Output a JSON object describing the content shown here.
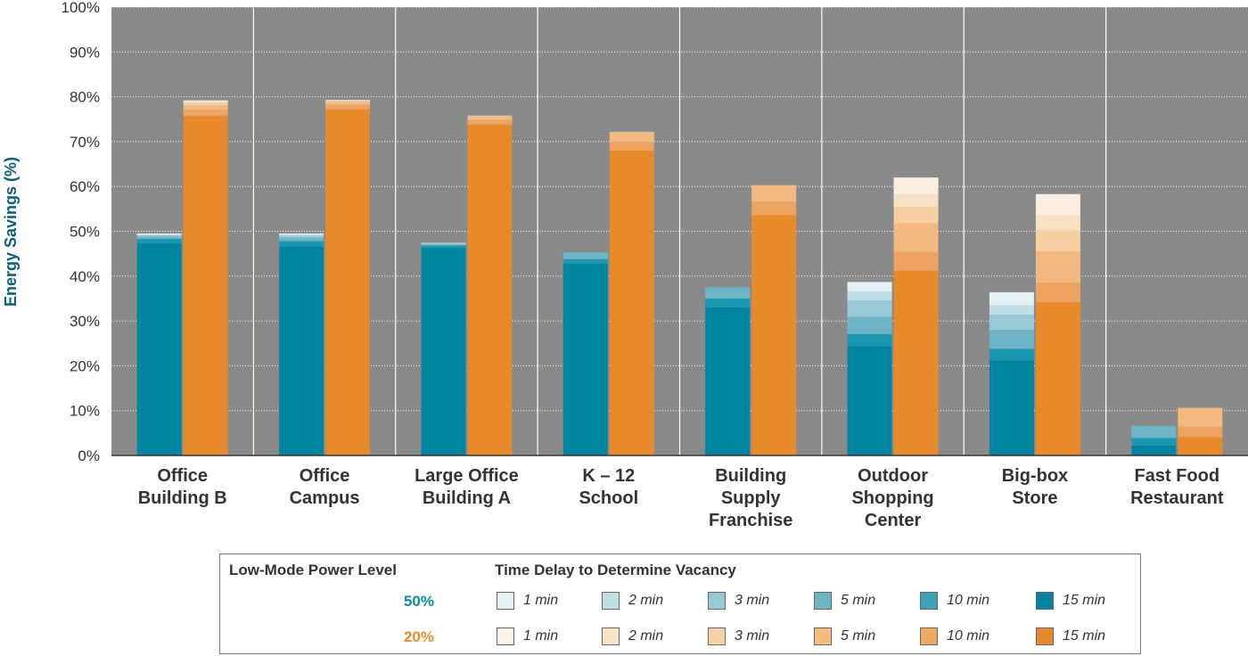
{
  "chart_data": {
    "type": "bar",
    "ylabel": "Energy Savings (%)",
    "ylim": [
      0,
      100
    ],
    "yticks": [
      "0%",
      "10%",
      "20%",
      "30%",
      "40%",
      "50%",
      "60%",
      "70%",
      "80%",
      "90%",
      "100%"
    ],
    "grid": true,
    "background_color": "#8a8a8a",
    "categories": [
      [
        "Office",
        "Building B"
      ],
      [
        "Office",
        "Campus"
      ],
      [
        "Large Office",
        "Building A"
      ],
      [
        "K – 12",
        "School"
      ],
      [
        "Building",
        "Supply",
        "Franchise"
      ],
      [
        "Outdoor",
        "Shopping",
        "Center"
      ],
      [
        "Big-box",
        "Store"
      ],
      [
        "Fast Food",
        "Restaurant"
      ]
    ],
    "stack_order": [
      "15 min",
      "10 min",
      "5 min",
      "3 min",
      "2 min",
      "1 min"
    ],
    "series": [
      {
        "name": "50%",
        "colors": [
          "#00849f",
          "#1c97b0",
          "#6fb4c7",
          "#98c9d6",
          "#c0dee6",
          "#e6f2f5"
        ],
        "values": [
          [
            47.3,
            48.3,
            48.8,
            49.1,
            49.3,
            49.5
          ],
          [
            46.6,
            47.8,
            48.6,
            49.0,
            49.3,
            49.5
          ],
          [
            46.3,
            46.8,
            47.1,
            47.2,
            47.3,
            47.4
          ],
          [
            42.8,
            43.8,
            45.3,
            45.3,
            45.3,
            45.3
          ],
          [
            33.0,
            35.0,
            37.5,
            37.5,
            37.5,
            37.5
          ],
          [
            24.4,
            27.1,
            30.9,
            34.6,
            36.6,
            38.7
          ],
          [
            21.2,
            23.8,
            28.0,
            31.4,
            33.5,
            36.4
          ],
          [
            2.2,
            3.9,
            6.6,
            6.6,
            6.6,
            6.6
          ]
        ]
      },
      {
        "name": "20%",
        "colors": [
          "#e88a2c",
          "#eea461",
          "#f2ba80",
          "#f6cfa3",
          "#f9e0c4",
          "#fcefe0"
        ],
        "values": [
          [
            75.7,
            77.1,
            78.1,
            78.6,
            79.0,
            79.2
          ],
          [
            77.2,
            78.2,
            78.8,
            79.1,
            79.2,
            79.3
          ],
          [
            73.8,
            74.8,
            75.6,
            75.8,
            75.8,
            75.8
          ],
          [
            68.0,
            70.0,
            72.2,
            72.2,
            72.2,
            72.2
          ],
          [
            53.6,
            56.6,
            60.3,
            60.3,
            60.3,
            60.3
          ],
          [
            41.2,
            45.4,
            51.8,
            55.4,
            58.1,
            62.0
          ],
          [
            34.2,
            38.5,
            45.5,
            50.2,
            53.5,
            58.3
          ],
          [
            4.1,
            6.4,
            10.6,
            10.6,
            10.6,
            10.6
          ]
        ]
      }
    ],
    "legend": {
      "placement": "bottom",
      "low_mode_title": "Low-Mode Power Level",
      "delay_title": "Time Delay to Determine Vacancy",
      "delays": [
        "1 min",
        "2 min",
        "3 min",
        "5 min",
        "10 min",
        "15 min"
      ],
      "rows": [
        {
          "level": "50%",
          "color": "#0a8aa3",
          "swatches": [
            "#e6f2f5",
            "#c0dee6",
            "#98c9d6",
            "#6fb4c7",
            "#3da0b8",
            "#00849f"
          ]
        },
        {
          "level": "20%",
          "color": "#e88a2c",
          "swatches": [
            "#fdf3e8",
            "#fbe3c8",
            "#f8d2a6",
            "#f4bd80",
            "#efaa62",
            "#e88a2c"
          ]
        }
      ]
    }
  }
}
